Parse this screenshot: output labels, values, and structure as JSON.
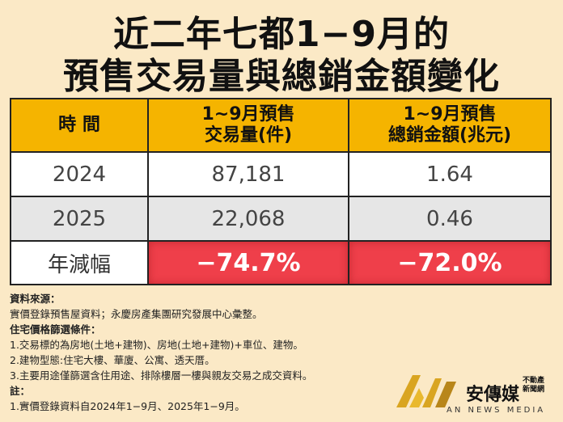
{
  "title_line1": "近二年七都1−9月的",
  "title_line2": "預售交易量與總銷金額變化",
  "table": {
    "headers": [
      "時 間",
      "1~9月預售\n交易量(件)",
      "1~9月預售\n總銷金額(兆元)"
    ],
    "rows": [
      [
        "2024",
        "87,181",
        "1.64"
      ],
      [
        "2025",
        "22,068",
        "0.46"
      ],
      [
        "年減幅",
        "−74.7%",
        "−72.0%"
      ]
    ]
  },
  "notes": {
    "source_heading": "資料來源：",
    "source_text": "實價登錄預售屋資料；永慶房產集團研究發展中心彙整。",
    "criteria_heading": "住宅價格篩選條件：",
    "criteria": [
      "1.交易標的為房地(土地+建物)、房地(土地+建物)+車位、建物。",
      "2.建物型態:住宅大樓、華廈、公寓、透天厝。",
      "3.主要用途僅篩選含住用途、排除樓層一樓與親友交易之成交資料。"
    ],
    "note_heading": "註：",
    "note_text": "1.實價登錄資料自2024年1−9月、2025年1−9月。"
  },
  "logo": {
    "name": "安傳媒",
    "sub": "不動產\n新聞網",
    "english": "AN NEWS MEDIA"
  }
}
